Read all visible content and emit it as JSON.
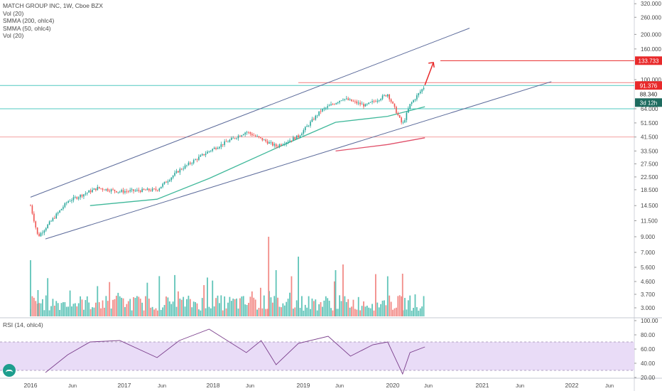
{
  "header": {
    "symbol_line": "MATCH GROUP INC, 1W, Cboe BZX",
    "indicators": [
      "Vol (20)",
      "SMMA (200, ohlc4)",
      "SMMA (50, ohlc4)",
      "Vol (20)"
    ]
  },
  "rsi_panel": {
    "label": "RSI (14, ohlc4)"
  },
  "colors": {
    "up": "#26a69a",
    "down": "#ef5350",
    "channel": "#5b6a9a",
    "support_line": "#50c8c0",
    "resistance_line": "#f08080",
    "smma50": "#3fb89a",
    "smma200": "#e0506a",
    "rsi_band": "#e9dcf7",
    "rsi_line": "#7b3f8c",
    "target_label_bg": "#e8292a",
    "price_label_bg": "#e8292a",
    "close_label_bg": "#26a69a",
    "countdown_label_bg": "#1e6b5f"
  },
  "chart_data": [
    {
      "type": "candlestick",
      "title": "MATCH GROUP INC, 1W, Cboe BZX",
      "scale": "log",
      "y_tick_labels": [
        "320.000",
        "260.000",
        "200.000",
        "160.000",
        "100.000",
        "64.000",
        "51.500",
        "41.500",
        "33.500",
        "27.500",
        "22.500",
        "18.500",
        "14.500",
        "11.500",
        "9.000"
      ],
      "x_tick_labels": [
        "2016",
        "Jun",
        "2017",
        "Jun",
        "2018",
        "Jun",
        "2019",
        "Jun",
        "2020",
        "Jun",
        "2021",
        "Jun",
        "2022",
        "Jun"
      ],
      "approx_weekly_close": {
        "x": [
          "2016-01",
          "2016-02",
          "2016-06",
          "2016-10",
          "2017-01",
          "2017-06",
          "2017-09",
          "2018-01",
          "2018-06",
          "2018-10",
          "2019-01",
          "2019-04",
          "2019-07",
          "2019-10",
          "2020-01",
          "2020-03",
          "2020-04",
          "2020-06"
        ],
        "y": [
          14.5,
          9.0,
          15.5,
          19.0,
          18.0,
          18.5,
          25.0,
          33.5,
          45.0,
          36.0,
          42.0,
          62.0,
          75.0,
          67.0,
          80.0,
          50.0,
          68.0,
          91.0
        ]
      },
      "smma_50": {
        "x": [
          "2016-09",
          "2017-06",
          "2018-01",
          "2018-10",
          "2019-06",
          "2020-01",
          "2020-06"
        ],
        "y": [
          14.5,
          16.0,
          22.0,
          35.0,
          52.0,
          57.0,
          66.0
        ]
      },
      "smma_200": {
        "x": [
          "2019-06",
          "2020-01",
          "2020-06"
        ],
        "y": [
          33.5,
          37.0,
          41.0
        ]
      },
      "channel_upper": {
        "x": [
          "2016-01",
          "2020-12"
        ],
        "y": [
          16.5,
          220.0
        ]
      },
      "channel_lower": {
        "x": [
          "2016-03",
          "2021-11"
        ],
        "y": [
          8.7,
          97.0
        ]
      },
      "horizontal_levels": [
        {
          "name": "resistance",
          "y": 91.376,
          "label": "91.376"
        },
        {
          "name": "support",
          "y": 64.0
        },
        {
          "name": "red-level",
          "y": 41.5
        },
        {
          "name": "target",
          "y": 133.733,
          "label": "133.733"
        }
      ],
      "price_labels": {
        "current": "91.376",
        "close": "88.340",
        "countdown": "3d 12h",
        "target": "133.733"
      }
    },
    {
      "type": "bar",
      "title": "Vol (20)",
      "y_tick_labels": [
        "7.000",
        "5.600",
        "4.600",
        "3.700",
        "3.000"
      ]
    },
    {
      "type": "line",
      "title": "RSI (14, ohlc4)",
      "y_tick_labels": [
        "100.00",
        "80.00",
        "60.00",
        "40.00",
        "20.00"
      ],
      "band": [
        30,
        70
      ],
      "x": [
        "2016-03",
        "2016-06",
        "2016-09",
        "2017-01",
        "2017-06",
        "2017-09",
        "2018-01",
        "2018-06",
        "2018-08",
        "2018-10",
        "2019-01",
        "2019-05",
        "2019-08",
        "2019-11",
        "2020-01",
        "2020-03",
        "2020-04",
        "2020-06"
      ],
      "y": [
        27,
        52,
        70,
        72,
        48,
        72,
        88,
        55,
        72,
        38,
        68,
        78,
        50,
        66,
        70,
        25,
        55,
        63
      ]
    }
  ]
}
